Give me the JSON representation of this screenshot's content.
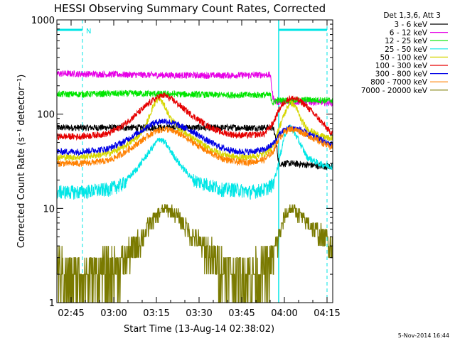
{
  "chart_data": {
    "type": "line",
    "title": "HESSI Observing Summary Count Rates, Corrected",
    "xlabel": "Start Time (13-Aug-14 02:38:02)",
    "ylabel": "Corrected Count Rate (s⁻¹ detector⁻¹)",
    "y_scale": "log",
    "ylim": [
      1,
      1000
    ],
    "xlim_minutes": [
      2,
      99
    ],
    "x_ticks": [
      {
        "label": "02:45",
        "minutes": 7
      },
      {
        "label": "03:00",
        "minutes": 22
      },
      {
        "label": "03:15",
        "minutes": 37
      },
      {
        "label": "03:30",
        "minutes": 52
      },
      {
        "label": "03:45",
        "minutes": 67
      },
      {
        "label": "04:00",
        "minutes": 82
      },
      {
        "label": "04:15",
        "minutes": 97
      }
    ],
    "y_ticks": [
      {
        "label": "1",
        "value": 1
      },
      {
        "label": "10",
        "value": 10
      },
      {
        "label": "100",
        "value": 100
      },
      {
        "label": "1000",
        "value": 1000
      }
    ],
    "legend_title": "Det 1,3,6, Att 3",
    "legend_position": "right, outside plot",
    "series": [
      {
        "name": "3 - 6 keV",
        "color": "#000000",
        "x": [
          2,
          10,
          20,
          30,
          35,
          40,
          45,
          50,
          60,
          70,
          75,
          78,
          79,
          80,
          85,
          90,
          95,
          98
        ],
        "y": [
          72,
          72,
          72,
          72,
          72,
          72,
          72,
          72,
          72,
          72,
          72,
          72,
          55,
          30,
          30,
          29,
          28,
          28
        ]
      },
      {
        "name": "6 - 12 keV",
        "color": "#e600e6",
        "x": [
          2,
          10,
          20,
          30,
          40,
          50,
          60,
          70,
          75,
          77,
          78,
          79,
          85,
          90,
          98
        ],
        "y": [
          270,
          268,
          265,
          262,
          260,
          258,
          258,
          260,
          262,
          262,
          150,
          135,
          135,
          135,
          133
        ]
      },
      {
        "name": "12 - 25 keV",
        "color": "#00e600",
        "x": [
          2,
          10,
          20,
          30,
          40,
          50,
          60,
          70,
          75,
          77,
          78,
          79,
          85,
          90,
          98
        ],
        "y": [
          163,
          163,
          165,
          166,
          164,
          162,
          160,
          160,
          160,
          160,
          130,
          140,
          140,
          142,
          140
        ]
      },
      {
        "name": "25 - 50 keV",
        "color": "#00e6e6",
        "x": [
          2,
          10,
          20,
          25,
          30,
          35,
          38,
          40,
          45,
          50,
          55,
          60,
          65,
          70,
          75,
          78,
          80,
          82,
          84,
          86,
          90,
          94,
          98
        ],
        "y": [
          15,
          15,
          16,
          18,
          26,
          42,
          55,
          50,
          30,
          20,
          18,
          16,
          16,
          15,
          16,
          18,
          30,
          60,
          75,
          60,
          35,
          30,
          28
        ]
      },
      {
        "name": "50 - 100 keV",
        "color": "#d6d600",
        "x": [
          2,
          10,
          20,
          25,
          30,
          33,
          36,
          38,
          40,
          42,
          45,
          50,
          55,
          60,
          65,
          70,
          75,
          78,
          80,
          82,
          84,
          86,
          88,
          90,
          94,
          98
        ],
        "y": [
          35,
          35,
          38,
          44,
          56,
          72,
          125,
          150,
          120,
          90,
          70,
          55,
          44,
          38,
          35,
          35,
          38,
          45,
          70,
          100,
          135,
          120,
          85,
          70,
          60,
          55
        ]
      },
      {
        "name": "100 - 300 keV",
        "color": "#e60000",
        "x": [
          2,
          10,
          20,
          25,
          30,
          35,
          38,
          40,
          43,
          45,
          50,
          55,
          60,
          65,
          70,
          75,
          78,
          80,
          82,
          84,
          86,
          88,
          90,
          94,
          98
        ],
        "y": [
          58,
          58,
          62,
          75,
          100,
          135,
          155,
          158,
          140,
          125,
          95,
          75,
          64,
          60,
          60,
          62,
          80,
          110,
          135,
          148,
          145,
          135,
          120,
          90,
          65
        ]
      },
      {
        "name": "300 - 800 keV",
        "color": "#0000e6",
        "x": [
          2,
          10,
          20,
          25,
          30,
          35,
          38,
          40,
          43,
          45,
          50,
          55,
          60,
          65,
          70,
          75,
          78,
          80,
          82,
          84,
          86,
          88,
          90,
          94,
          98
        ],
        "y": [
          40,
          40,
          43,
          50,
          62,
          78,
          84,
          85,
          80,
          76,
          65,
          52,
          44,
          40,
          40,
          42,
          48,
          60,
          68,
          72,
          70,
          68,
          62,
          55,
          48
        ]
      },
      {
        "name": "800 - 7000 keV",
        "color": "#ff8000",
        "x": [
          2,
          10,
          20,
          25,
          30,
          35,
          38,
          40,
          43,
          45,
          50,
          55,
          60,
          65,
          70,
          75,
          78,
          80,
          82,
          84,
          86,
          88,
          90,
          94,
          98
        ],
        "y": [
          30,
          30,
          32,
          38,
          48,
          62,
          68,
          70,
          66,
          62,
          50,
          40,
          34,
          31,
          31,
          33,
          40,
          55,
          65,
          70,
          68,
          65,
          60,
          52,
          45
        ]
      },
      {
        "name": "7000 - 20000 keV",
        "color": "#7a7a00",
        "x": [
          2,
          5,
          8,
          12,
          15,
          20,
          25,
          30,
          35,
          38,
          40,
          43,
          45,
          50,
          55,
          60,
          65,
          70,
          75,
          78,
          80,
          82,
          84,
          86,
          88,
          90,
          94,
          98
        ],
        "y": [
          2.5,
          2,
          2,
          2,
          2,
          2.2,
          2.8,
          4,
          7,
          9,
          10,
          9,
          8,
          5,
          3.5,
          2.5,
          2,
          2,
          2.2,
          3,
          5,
          8,
          10,
          9.5,
          8,
          7,
          5.5,
          4.5
        ]
      }
    ],
    "annotations": [
      {
        "text": "N",
        "color": "#00e6e6",
        "note": "night period marker at top"
      }
    ],
    "night_intervals": [
      [
        2,
        11
      ],
      [
        80,
        97
      ]
    ],
    "footer": "5-Nov-2014 16:44"
  }
}
